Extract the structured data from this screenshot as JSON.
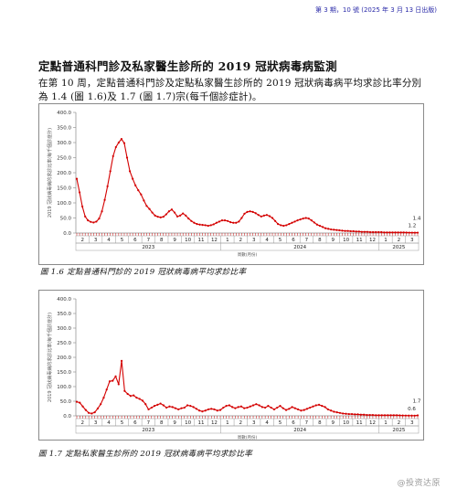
{
  "header": {
    "issue_text": "第 3 期，10 號 (2025 年 3 月 13 日出版)"
  },
  "section": {
    "title": "定點普通科門診及私家醫生診所的 2019 冠狀病毒病監測",
    "body": "在第 10 周，定點普通科門診及定點私家醫生診所的 2019 冠狀病毒病平均求診比率分別為 1.4 (圖 1.6)及 1.7 (圖 1.7)宗(每千個診症計)。"
  },
  "watermark": "@投资达原",
  "colors": {
    "line": "#d40000",
    "tick_red": "#cc0000",
    "axis": "#888888"
  },
  "chart_data": [
    {
      "type": "line",
      "caption": "圖 1.6  定點普通科門診的 2019 冠狀病毒病平均求診比率",
      "ylabel": "2019 冠狀病毒病的求診比率(每千個診症計)",
      "xlabel": "周數(月份)",
      "ylim": [
        0,
        400
      ],
      "yticks": [
        "400.0",
        "350.0",
        "300.0",
        "250.0",
        "200.0",
        "150.0",
        "100.0",
        "50.0",
        "0.0"
      ],
      "months": [
        "2",
        "3",
        "4",
        "5",
        "6",
        "7",
        "8",
        "9",
        "10",
        "11",
        "12",
        "1",
        "2",
        "3",
        "4",
        "5",
        "6",
        "7",
        "8",
        "9",
        "10",
        "11",
        "12",
        "1",
        "2",
        "3"
      ],
      "years": [
        "2023",
        "2024",
        "2025"
      ],
      "annotations": [
        "1.2",
        "1.4"
      ],
      "series": [
        {
          "values": [
            180,
            135,
            88,
            55,
            42,
            37,
            35,
            38,
            48,
            72,
            110,
            155,
            205,
            255,
            285,
            300,
            312,
            298,
            250,
            205,
            180,
            158,
            142,
            128,
            108,
            90,
            80,
            68,
            58,
            54,
            52,
            54,
            62,
            72,
            78,
            68,
            55,
            58,
            65,
            58,
            48,
            40,
            34,
            30,
            28,
            27,
            26,
            24,
            26,
            29,
            34,
            38,
            42,
            42,
            40,
            36,
            34,
            34,
            38,
            50,
            64,
            70,
            72,
            70,
            66,
            60,
            55,
            58,
            60,
            56,
            50,
            40,
            30,
            26,
            24,
            26,
            30,
            34,
            38,
            42,
            45,
            48,
            50,
            48,
            42,
            35,
            28,
            24,
            20,
            16,
            14,
            12,
            11,
            10,
            9,
            8,
            7,
            7,
            6,
            6,
            5,
            5,
            4,
            4,
            4,
            3,
            3,
            3,
            3,
            3,
            2,
            2,
            2,
            2,
            2,
            2,
            2,
            2,
            1.6,
            1.4,
            1.3,
            1.2,
            1.4
          ]
        }
      ]
    },
    {
      "type": "line",
      "caption": "圖 1.7  定點私家醫生診所的 2019 冠狀病毒病平均求診比率",
      "ylabel": "2019 冠狀病毒病的求診比率(每千個診症計)",
      "xlabel": "周數(月份)",
      "ylim": [
        0,
        400
      ],
      "yticks": [
        "400.0",
        "350.0",
        "300.0",
        "250.0",
        "200.0",
        "150.0",
        "100.0",
        "50.0",
        "0.0"
      ],
      "months": [
        "2",
        "3",
        "4",
        "5",
        "6",
        "7",
        "8",
        "9",
        "10",
        "11",
        "12",
        "1",
        "2",
        "3",
        "4",
        "5",
        "6",
        "7",
        "8",
        "9",
        "10",
        "11",
        "12",
        "1",
        "2",
        "3"
      ],
      "years": [
        "2023",
        "2024",
        "2025"
      ],
      "annotations": [
        "0.6",
        "1.7"
      ],
      "series": [
        {
          "values": [
            48,
            45,
            32,
            20,
            10,
            8,
            12,
            25,
            40,
            62,
            90,
            118,
            120,
            135,
            108,
            188,
            85,
            75,
            68,
            70,
            62,
            58,
            52,
            40,
            22,
            28,
            34,
            38,
            42,
            36,
            28,
            32,
            30,
            26,
            22,
            26,
            28,
            36,
            34,
            30,
            24,
            18,
            15,
            18,
            22,
            24,
            22,
            18,
            20,
            28,
            34,
            36,
            30,
            26,
            30,
            32,
            26,
            28,
            32,
            36,
            40,
            36,
            30,
            28,
            34,
            28,
            22,
            28,
            34,
            26,
            20,
            24,
            30,
            26,
            22,
            18,
            20,
            24,
            28,
            32,
            36,
            38,
            34,
            30,
            22,
            18,
            14,
            12,
            10,
            8,
            7,
            6,
            6,
            5,
            5,
            4,
            4,
            3,
            3,
            3,
            2,
            2,
            2,
            2,
            2,
            2,
            2,
            2,
            1.5,
            1.2,
            1,
            0.8,
            0.7,
            0.6,
            1.7
          ]
        }
      ]
    }
  ]
}
